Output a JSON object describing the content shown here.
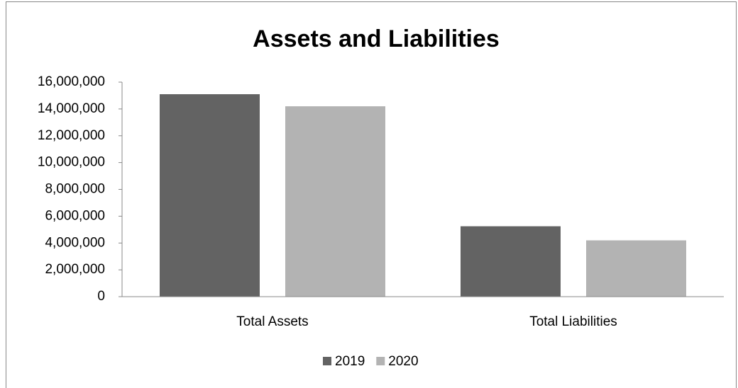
{
  "chart_data": {
    "type": "bar",
    "title": "Assets and Liabilities",
    "categories": [
      "Total Assets",
      "Total Liabilities"
    ],
    "series": [
      {
        "name": "2019",
        "color": "#636363",
        "values": [
          15100000,
          5250000
        ]
      },
      {
        "name": "2020",
        "color": "#b3b3b3",
        "values": [
          14200000,
          4200000
        ]
      }
    ],
    "ylim": [
      0,
      16000000
    ],
    "yticks": [
      0,
      {
        "value": 2000000,
        "label": "2,000,000"
      },
      {
        "value": 4000000,
        "label": "4,000,000"
      },
      {
        "value": 6000000,
        "label": "6,000,000"
      },
      {
        "value": 8000000,
        "label": "8,000,000"
      },
      {
        "value": 10000000,
        "label": "10,000,000"
      },
      {
        "value": 12000000,
        "label": "12,000,000"
      },
      {
        "value": 14000000,
        "label": "14,000,000"
      },
      {
        "value": 16000000,
        "label": "16,000,000"
      }
    ],
    "grid": false,
    "legend": "bottom"
  }
}
